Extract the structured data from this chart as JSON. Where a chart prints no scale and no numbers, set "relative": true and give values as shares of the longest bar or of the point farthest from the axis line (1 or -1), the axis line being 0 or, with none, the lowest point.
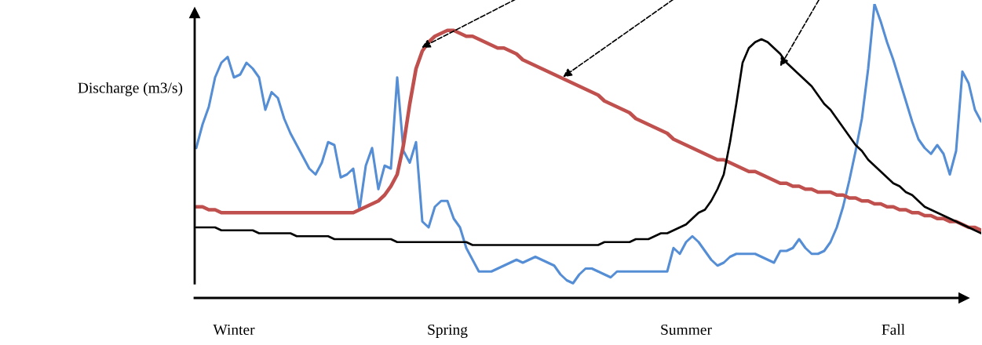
{
  "chart_data": {
    "type": "line",
    "relative": true,
    "ylabel": "Discharge (m3/s)",
    "marker": "none",
    "line_style": "solid",
    "categories": [
      null,
      null,
      null,
      null,
      null,
      null,
      "Winter",
      null,
      null,
      null,
      null,
      null,
      null,
      null,
      null,
      null,
      null,
      null,
      null,
      null,
      null,
      null,
      null,
      null,
      null,
      null,
      null,
      null,
      null,
      null,
      null,
      null,
      null,
      null,
      null,
      null,
      null,
      null,
      null,
      null,
      "Spring",
      null,
      null,
      null,
      null,
      null,
      null,
      null,
      null,
      null,
      null,
      null,
      null,
      null,
      null,
      null,
      null,
      null,
      null,
      null,
      null,
      null,
      null,
      null,
      null,
      null,
      null,
      null,
      null,
      null,
      null,
      null,
      null,
      null,
      null,
      null,
      null,
      null,
      "Summer",
      null,
      null,
      null,
      null,
      null,
      null,
      null,
      null,
      null,
      null,
      null,
      null,
      null,
      null,
      null,
      null,
      null,
      null,
      null,
      null,
      null,
      null,
      null,
      null,
      null,
      null,
      null,
      null,
      null,
      null,
      null,
      null,
      "Fall",
      null,
      null,
      null,
      null,
      null,
      null,
      null,
      null,
      null,
      null,
      null,
      null,
      null,
      null
    ],
    "series": [
      {
        "color": "#558ed5",
        "values": [
          0.51,
          0.59,
          0.65,
          0.75,
          0.8,
          0.82,
          0.75,
          0.76,
          0.8,
          0.78,
          0.75,
          0.64,
          0.7,
          0.68,
          0.61,
          0.56,
          0.52,
          0.48,
          0.44,
          0.42,
          0.46,
          0.53,
          0.52,
          0.41,
          0.42,
          0.44,
          0.3,
          0.45,
          0.51,
          0.37,
          0.45,
          0.44,
          0.75,
          0.5,
          0.46,
          0.53,
          0.26,
          0.24,
          0.31,
          0.33,
          0.33,
          0.27,
          0.24,
          0.17,
          0.13,
          0.09,
          0.09,
          0.09,
          0.1,
          0.11,
          0.12,
          0.13,
          0.12,
          0.13,
          0.14,
          0.13,
          0.12,
          0.11,
          0.08,
          0.06,
          0.05,
          0.08,
          0.1,
          0.1,
          0.09,
          0.08,
          0.07,
          0.09,
          0.09,
          0.09,
          0.09,
          0.09,
          0.09,
          0.09,
          0.09,
          0.09,
          0.17,
          0.15,
          0.19,
          0.21,
          0.19,
          0.16,
          0.13,
          0.11,
          0.12,
          0.14,
          0.15,
          0.15,
          0.15,
          0.15,
          0.14,
          0.13,
          0.12,
          0.16,
          0.16,
          0.17,
          0.2,
          0.17,
          0.15,
          0.15,
          0.16,
          0.19,
          0.24,
          0.31,
          0.4,
          0.5,
          0.61,
          0.78,
          1.0,
          0.94,
          0.87,
          0.81,
          0.74,
          0.67,
          0.6,
          0.54,
          0.51,
          0.49,
          0.52,
          0.49,
          0.42,
          0.5,
          0.77,
          0.73,
          0.64,
          0.6
        ]
      },
      {
        "color": "#c0504d",
        "values": [
          0.31,
          0.31,
          0.3,
          0.3,
          0.29,
          0.29,
          0.29,
          0.29,
          0.29,
          0.29,
          0.29,
          0.29,
          0.29,
          0.29,
          0.29,
          0.29,
          0.29,
          0.29,
          0.29,
          0.29,
          0.29,
          0.29,
          0.29,
          0.29,
          0.29,
          0.29,
          0.3,
          0.31,
          0.32,
          0.33,
          0.35,
          0.38,
          0.42,
          0.52,
          0.66,
          0.78,
          0.84,
          0.87,
          0.89,
          0.9,
          0.91,
          0.91,
          0.9,
          0.89,
          0.89,
          0.88,
          0.87,
          0.86,
          0.85,
          0.85,
          0.84,
          0.83,
          0.81,
          0.8,
          0.79,
          0.78,
          0.77,
          0.76,
          0.75,
          0.74,
          0.73,
          0.72,
          0.71,
          0.7,
          0.69,
          0.67,
          0.66,
          0.65,
          0.64,
          0.63,
          0.61,
          0.6,
          0.59,
          0.58,
          0.57,
          0.56,
          0.54,
          0.53,
          0.52,
          0.51,
          0.5,
          0.49,
          0.48,
          0.47,
          0.47,
          0.46,
          0.45,
          0.44,
          0.43,
          0.43,
          0.42,
          0.41,
          0.4,
          0.39,
          0.39,
          0.38,
          0.38,
          0.37,
          0.37,
          0.36,
          0.36,
          0.36,
          0.35,
          0.35,
          0.34,
          0.34,
          0.33,
          0.33,
          0.32,
          0.32,
          0.31,
          0.31,
          0.3,
          0.3,
          0.29,
          0.29,
          0.28,
          0.28,
          0.27,
          0.27,
          0.26,
          0.26,
          0.25,
          0.24,
          0.24,
          0.23
        ]
      },
      {
        "color": "#000000",
        "values": [
          0.24,
          0.24,
          0.24,
          0.24,
          0.23,
          0.23,
          0.23,
          0.23,
          0.23,
          0.23,
          0.22,
          0.22,
          0.22,
          0.22,
          0.22,
          0.22,
          0.21,
          0.21,
          0.21,
          0.21,
          0.21,
          0.21,
          0.2,
          0.2,
          0.2,
          0.2,
          0.2,
          0.2,
          0.2,
          0.2,
          0.2,
          0.2,
          0.19,
          0.19,
          0.19,
          0.19,
          0.19,
          0.19,
          0.19,
          0.19,
          0.19,
          0.19,
          0.19,
          0.19,
          0.18,
          0.18,
          0.18,
          0.18,
          0.18,
          0.18,
          0.18,
          0.18,
          0.18,
          0.18,
          0.18,
          0.18,
          0.18,
          0.18,
          0.18,
          0.18,
          0.18,
          0.18,
          0.18,
          0.18,
          0.18,
          0.19,
          0.19,
          0.19,
          0.19,
          0.19,
          0.2,
          0.2,
          0.2,
          0.21,
          0.22,
          0.22,
          0.23,
          0.24,
          0.25,
          0.27,
          0.29,
          0.3,
          0.33,
          0.37,
          0.42,
          0.53,
          0.66,
          0.8,
          0.85,
          0.87,
          0.88,
          0.87,
          0.85,
          0.83,
          0.8,
          0.78,
          0.76,
          0.74,
          0.72,
          0.69,
          0.66,
          0.64,
          0.61,
          0.58,
          0.55,
          0.52,
          0.5,
          0.47,
          0.45,
          0.43,
          0.41,
          0.39,
          0.38,
          0.36,
          0.35,
          0.33,
          0.31,
          0.3,
          0.29,
          0.28,
          0.27,
          0.26,
          0.25,
          0.24,
          0.23,
          0.22
        ]
      }
    ]
  }
}
